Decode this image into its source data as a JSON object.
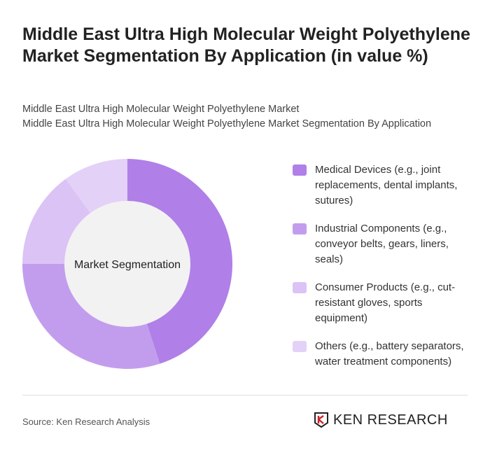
{
  "title": "Middle East Ultra High Molecular Weight Polyethylene Market Segmentation By Application (in value %)",
  "subtitle_lines": [
    "Middle East Ultra High Molecular Weight Polyethylene Market",
    "Middle East Ultra High Molecular Weight Polyethylene Market Segmentation By Application"
  ],
  "chart_data": {
    "type": "pie",
    "variant": "donut",
    "center_label": "Market Segmentation",
    "categories": [
      "Medical Devices (e.g., joint replacements, dental implants, sutures)",
      "Industrial Components (e.g., conveyor belts, gears, liners, seals)",
      "Consumer Products (e.g., cut-resistant gloves, sports equipment)",
      "Others (e.g., battery separators, water treatment components)"
    ],
    "values": [
      45,
      30,
      15,
      10
    ],
    "colors": [
      "#b07fe8",
      "#c39ded",
      "#dbc3f5",
      "#e3d1f7"
    ],
    "legend": "right"
  },
  "source": "Source: Ken Research Analysis",
  "logo_text": "KEN RESEARCH"
}
